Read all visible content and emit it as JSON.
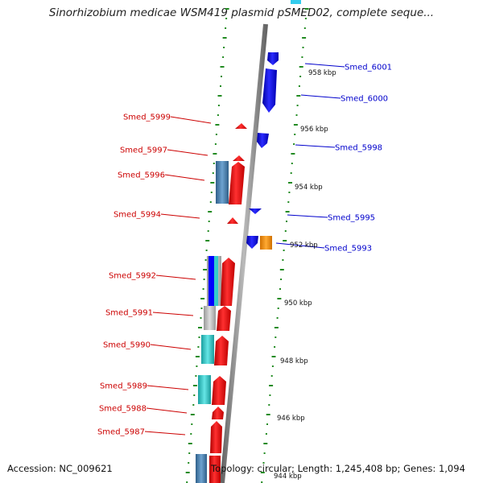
{
  "title": "Sinorhizobium medicae WSM419 plasmid pSMED02, complete seque...",
  "footer": {
    "accession": "Accession: NC_009621",
    "summary": "Topology: circular; Length: 1,245,408 bp; Genes: 1,094"
  },
  "ticks": [
    "958 kbp",
    "956 kbp",
    "954 kbp",
    "952 kbp",
    "950 kbp",
    "948 kbp",
    "946 kbp",
    "944 kbp"
  ],
  "labels_left": [
    "Smed_5999",
    "Smed_5997",
    "Smed_5996",
    "Smed_5994",
    "Smed_5992",
    "Smed_5991",
    "Smed_5990",
    "Smed_5989",
    "Smed_5988",
    "Smed_5987"
  ],
  "labels_right": [
    "Smed_6001",
    "Smed_6000",
    "Smed_5998",
    "Smed_5995",
    "Smed_5993"
  ],
  "colors": {
    "forward_label": "#cc0000",
    "reverse_label": "#0000cc",
    "cds_forward": "#ff0000",
    "cds_reverse": "#0000ff",
    "steel": "#4682b4",
    "cyan": "#33cccc",
    "gray": "#bbbbbb",
    "orange": "#ff8c00",
    "backbone": "#888888",
    "dots": "#228b22"
  }
}
